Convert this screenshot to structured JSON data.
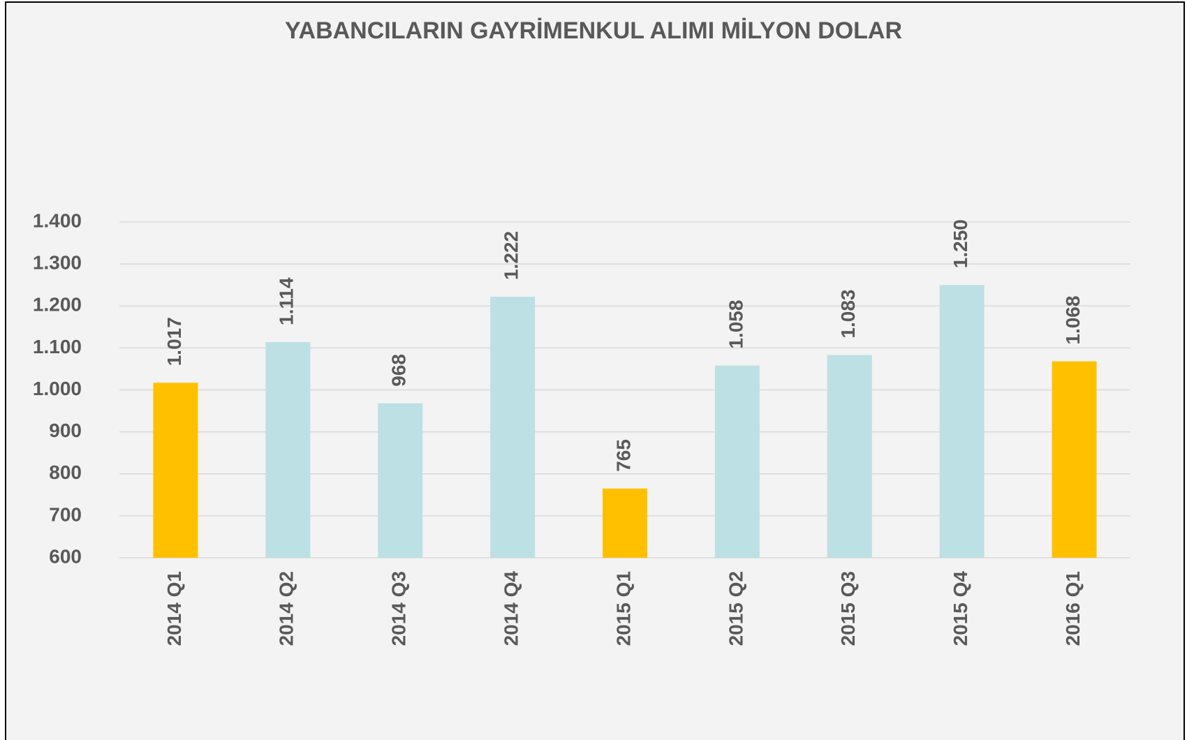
{
  "chart_data": {
    "type": "bar",
    "title": "YABANCILARIN GAYRİMENKUL ALIMI MİLYON DOLAR",
    "categories": [
      "2014 Q1",
      "2014 Q2",
      "2014 Q3",
      "2014 Q4",
      "2015 Q1",
      "2015 Q2",
      "2015 Q3",
      "2015 Q4",
      "2016 Q1"
    ],
    "values": [
      1017,
      1114,
      968,
      1222,
      765,
      1058,
      1083,
      1250,
      1068
    ],
    "value_labels": [
      "1.017",
      "1.114",
      "968",
      "1.222",
      "765",
      "1.058",
      "1.083",
      "1.250",
      "1.068"
    ],
    "colors": [
      "#ffc000",
      "#bde0e4",
      "#bde0e4",
      "#bde0e4",
      "#ffc000",
      "#bde0e4",
      "#bde0e4",
      "#bde0e4",
      "#ffc000"
    ],
    "ylim": [
      600,
      1400
    ],
    "yticks": [
      {
        "value": 600,
        "label": "600"
      },
      {
        "value": 700,
        "label": "700"
      },
      {
        "value": 800,
        "label": "800"
      },
      {
        "value": 900,
        "label": "900"
      },
      {
        "value": 1000,
        "label": "1.000"
      },
      {
        "value": 1100,
        "label": "1.100"
      },
      {
        "value": 1200,
        "label": "1.200"
      },
      {
        "value": 1300,
        "label": "1.300"
      },
      {
        "value": 1400,
        "label": "1.400"
      }
    ],
    "grid": true
  }
}
